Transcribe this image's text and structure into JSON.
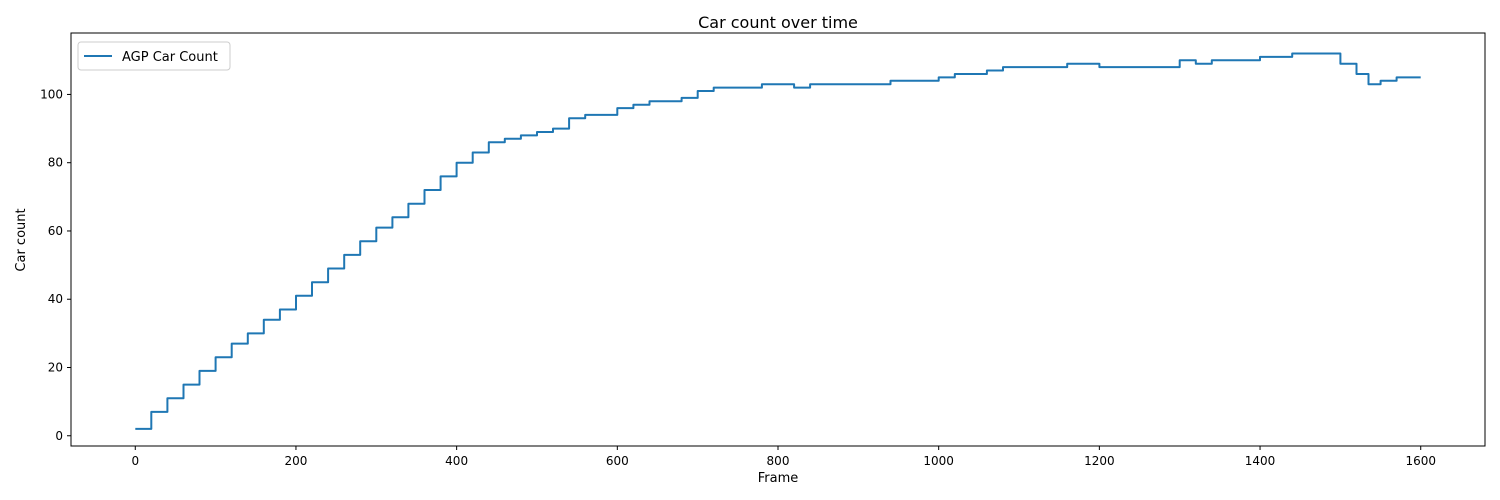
{
  "chart_data": {
    "type": "line",
    "title": "Car count over time",
    "xlabel": "Frame",
    "ylabel": "Car count",
    "xlim": [
      -80,
      1680
    ],
    "ylim": [
      -3,
      118
    ],
    "xticks": [
      0,
      200,
      400,
      600,
      800,
      1000,
      1200,
      1400,
      1600
    ],
    "yticks": [
      0,
      20,
      40,
      60,
      80,
      100
    ],
    "grid": false,
    "legend_position": "top-left",
    "series": [
      {
        "name": "AGP Car Count",
        "color": "#1f77b4",
        "x": [
          0,
          20,
          40,
          60,
          80,
          100,
          120,
          140,
          160,
          180,
          200,
          220,
          240,
          260,
          280,
          300,
          320,
          340,
          360,
          380,
          400,
          420,
          440,
          460,
          480,
          500,
          520,
          540,
          560,
          580,
          600,
          620,
          640,
          660,
          680,
          700,
          720,
          740,
          760,
          780,
          800,
          820,
          840,
          860,
          880,
          900,
          920,
          940,
          960,
          980,
          1000,
          1020,
          1040,
          1060,
          1080,
          1100,
          1120,
          1140,
          1160,
          1180,
          1200,
          1220,
          1240,
          1260,
          1280,
          1300,
          1320,
          1340,
          1360,
          1380,
          1400,
          1420,
          1440,
          1460,
          1480,
          1500,
          1520,
          1535,
          1550,
          1570,
          1590,
          1600
        ],
        "y": [
          2,
          7,
          11,
          15,
          19,
          23,
          27,
          30,
          34,
          37,
          41,
          45,
          49,
          53,
          57,
          61,
          64,
          68,
          72,
          76,
          80,
          83,
          86,
          87,
          88,
          89,
          90,
          93,
          94,
          94,
          96,
          97,
          98,
          98,
          99,
          101,
          102,
          102,
          102,
          103,
          103,
          102,
          103,
          103,
          103,
          103,
          103,
          104,
          104,
          104,
          105,
          106,
          106,
          107,
          108,
          108,
          108,
          108,
          109,
          109,
          108,
          108,
          108,
          108,
          108,
          110,
          109,
          110,
          110,
          110,
          111,
          111,
          112,
          112,
          112,
          109,
          106,
          103,
          104,
          105,
          105,
          105
        ]
      }
    ]
  }
}
